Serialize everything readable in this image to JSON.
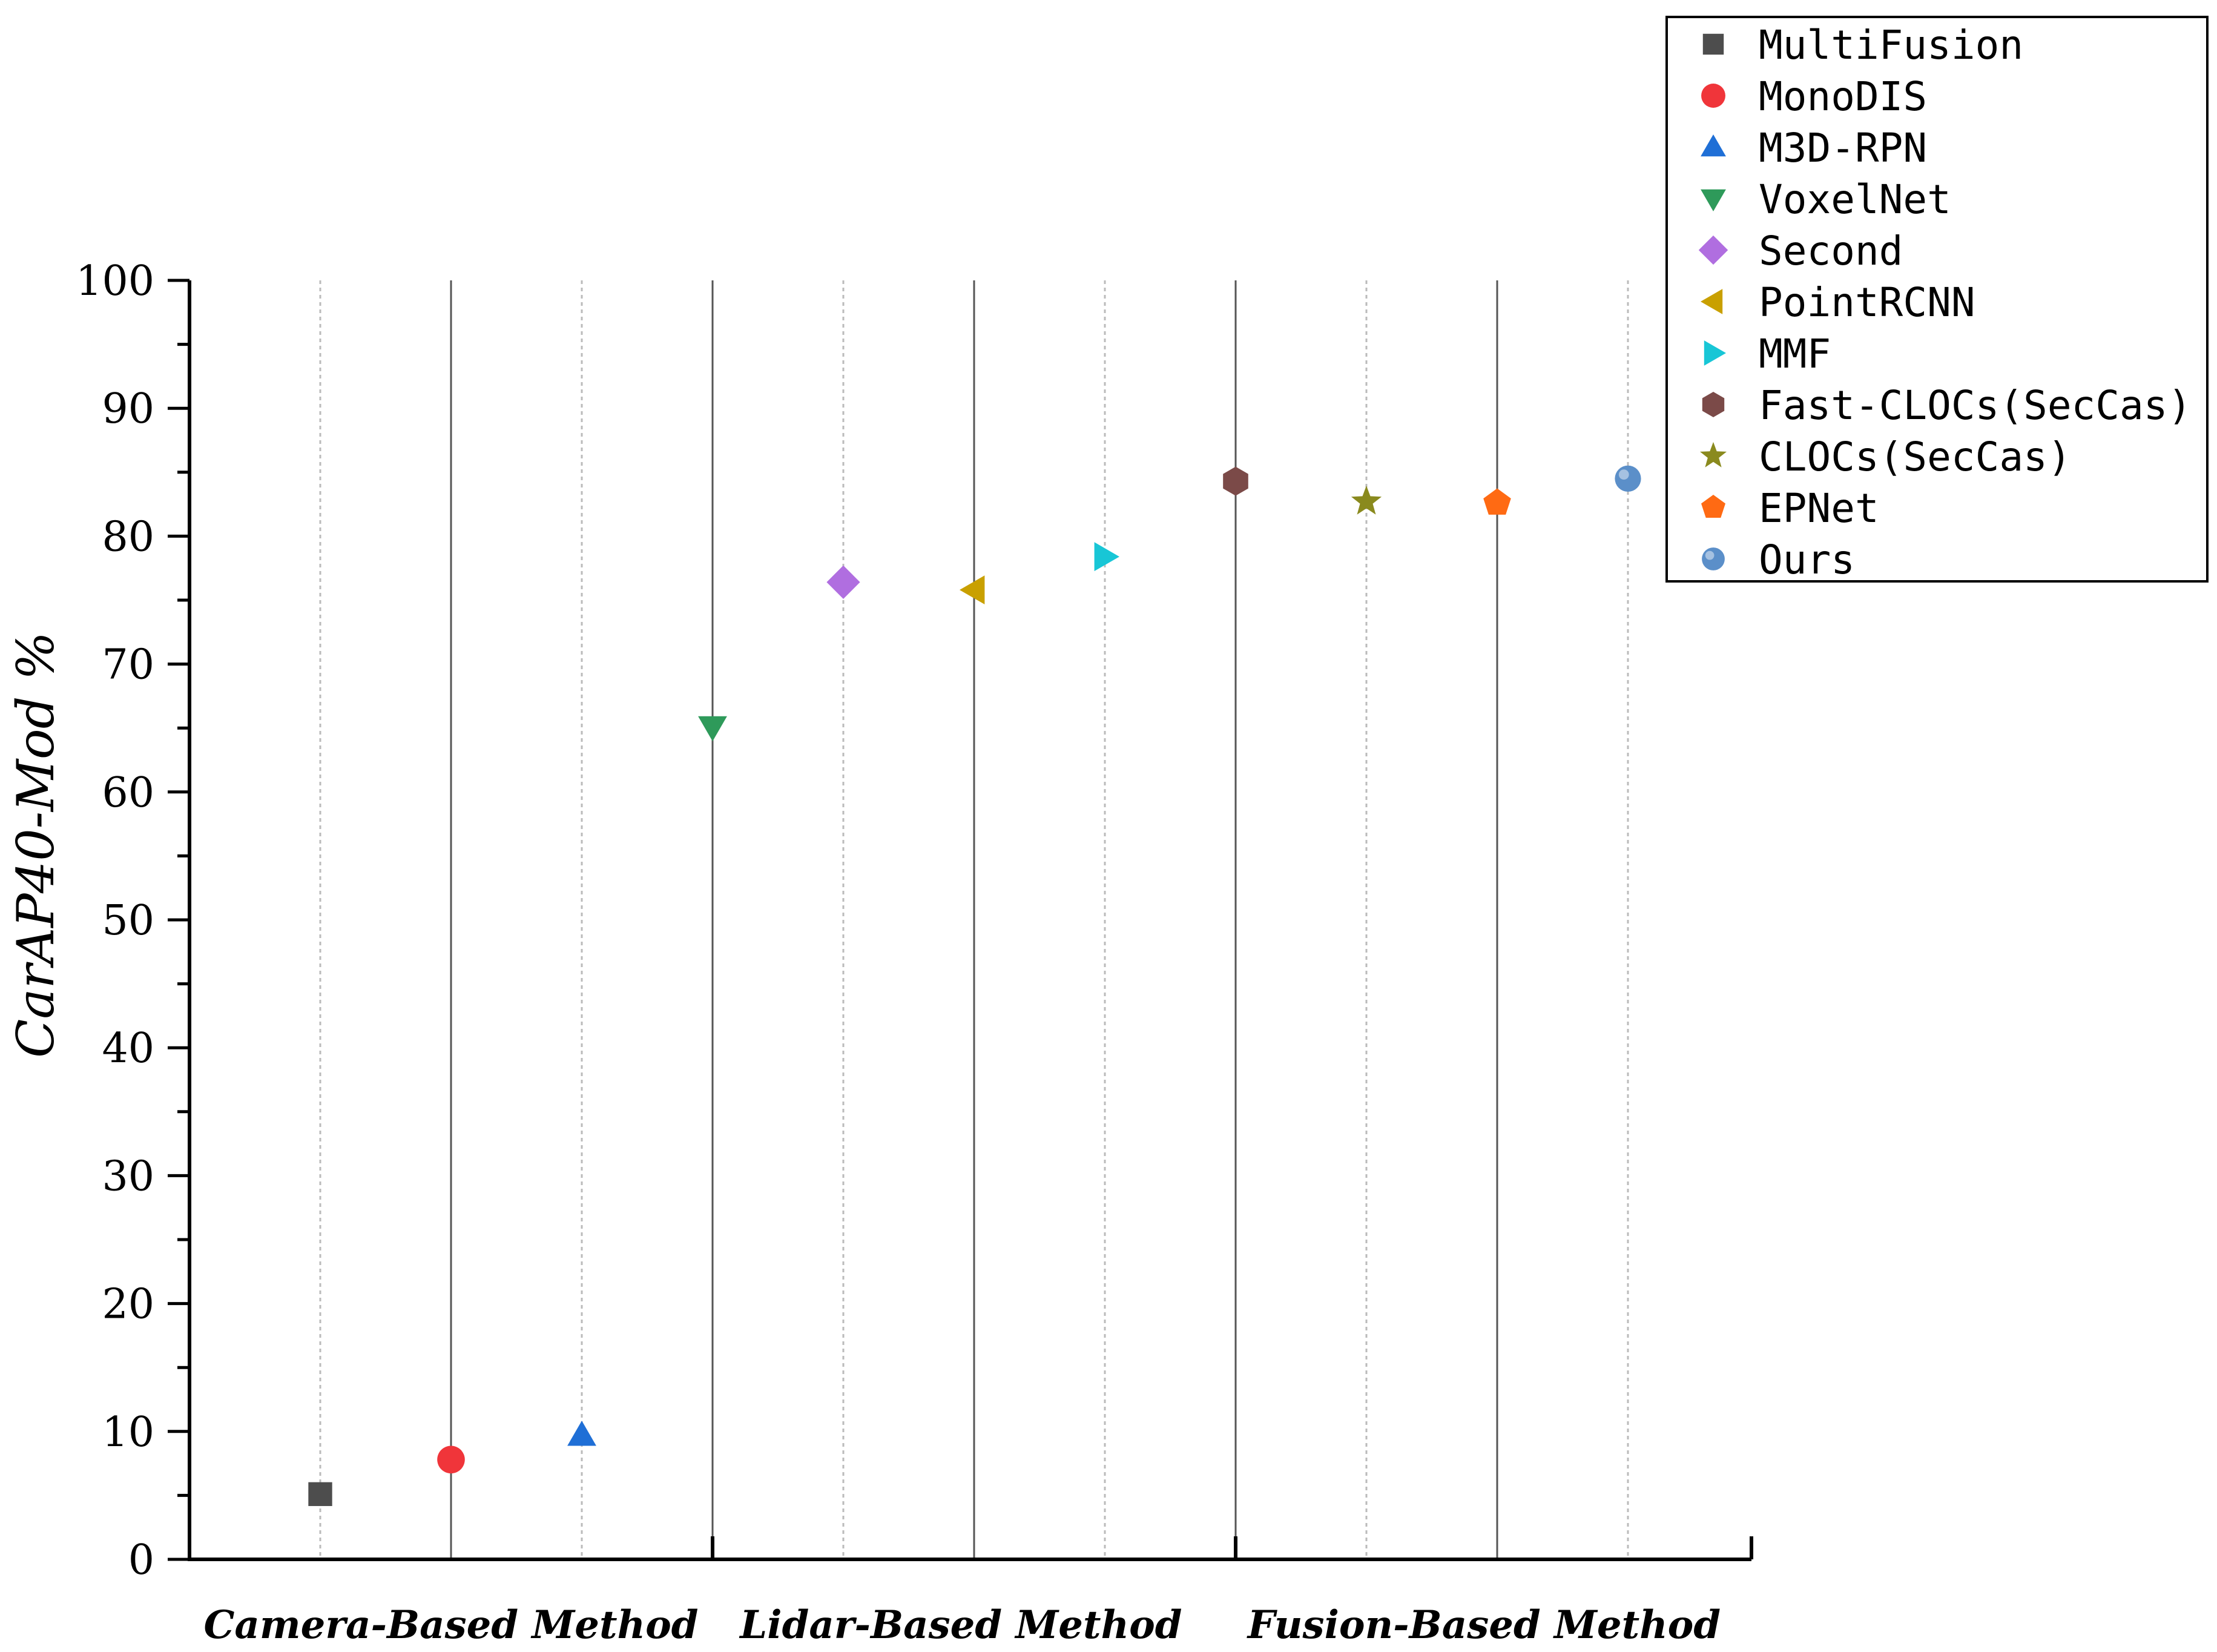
{
  "chart_data": {
    "type": "scatter",
    "ylabel": "CarAP40-Mod %",
    "ylim": [
      0,
      100
    ],
    "yticks": [
      "0",
      "10",
      "20",
      "30",
      "40",
      "50",
      "60",
      "70",
      "80",
      "90",
      "100"
    ],
    "categories": [
      "Camera-Based Method",
      "Lidar-Based Method",
      "Fusion-Based Method"
    ],
    "legend_position": "top-right",
    "series": [
      {
        "name": "MultiFusion",
        "category": "Camera-Based Method",
        "value": 5.1,
        "marker": "square",
        "color": "#4d4d4d"
      },
      {
        "name": "MonoDIS",
        "category": "Camera-Based Method",
        "value": 7.8,
        "marker": "circle",
        "color": "#f0353a"
      },
      {
        "name": "M3D-RPN",
        "category": "Camera-Based Method",
        "value": 9.7,
        "marker": "triangle-up",
        "color": "#1f6fd6"
      },
      {
        "name": "VoxelNet",
        "category": "Lidar-Based Method",
        "value": 65.1,
        "marker": "triangle-down",
        "color": "#2e9a5a"
      },
      {
        "name": "Second",
        "category": "Lidar-Based Method",
        "value": 76.4,
        "marker": "diamond",
        "color": "#b06ee0"
      },
      {
        "name": "PointRCNN",
        "category": "Lidar-Based Method",
        "value": 75.8,
        "marker": "triangle-left",
        "color": "#c9a000"
      },
      {
        "name": "MMF",
        "category": "Lidar-Based Method",
        "value": 78.4,
        "marker": "triangle-right",
        "color": "#18c6d6"
      },
      {
        "name": "Fast-CLOCs(SecCas)",
        "category": "Fusion-Based Method",
        "value": 84.3,
        "marker": "hexagon",
        "color": "#7b4a48"
      },
      {
        "name": "CLOCs(SecCas)",
        "category": "Fusion-Based Method",
        "value": 82.7,
        "marker": "star",
        "color": "#8a8a1e"
      },
      {
        "name": "EPNet",
        "category": "Fusion-Based Method",
        "value": 82.6,
        "marker": "pentagon",
        "color": "#ff6a13"
      },
      {
        "name": "Ours",
        "category": "Fusion-Based Method",
        "value": 84.5,
        "marker": "sphere",
        "color": "#5b8fc9"
      }
    ]
  }
}
